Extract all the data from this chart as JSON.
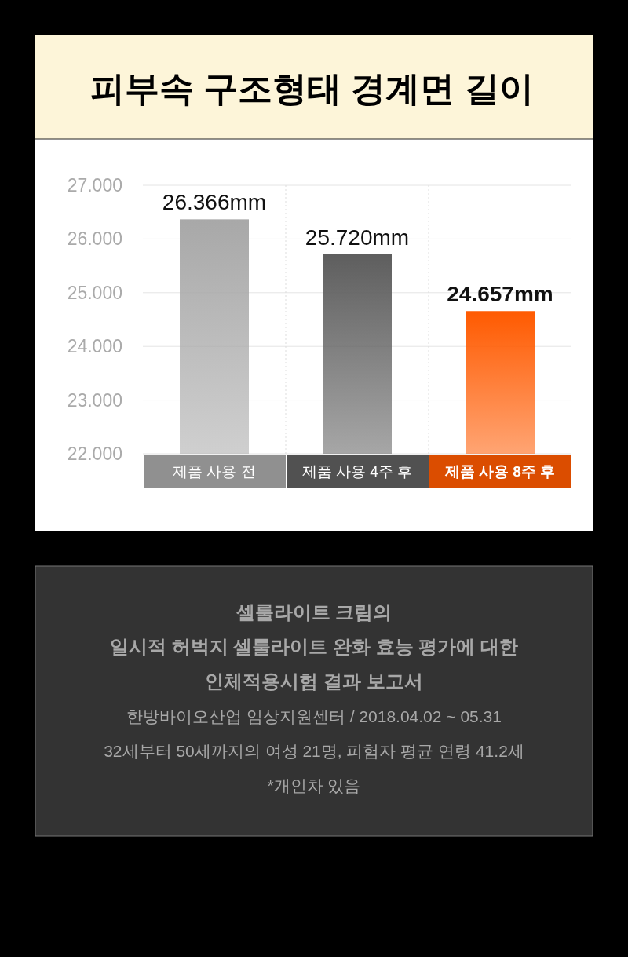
{
  "chart_data": {
    "type": "bar",
    "title": "피부속 구조형태 경계면 길이",
    "categories": [
      "제품 사용 전",
      "제품 사용 4주 후",
      "제품 사용 8주 후"
    ],
    "values": [
      26.366,
      25.72,
      24.657
    ],
    "value_labels": [
      "26.366mm",
      "25.720mm",
      "24.657mm"
    ],
    "colors": [
      "#a8a8a8",
      "#5e5e5e",
      "#ff5a00"
    ],
    "ylim": [
      22,
      27
    ],
    "yticks": [
      {
        "value": 22,
        "label": "22.000"
      },
      {
        "value": 23,
        "label": "23.000"
      },
      {
        "value": 24,
        "label": "24.000"
      },
      {
        "value": 25,
        "label": "25.000"
      },
      {
        "value": 26,
        "label": "26.000"
      },
      {
        "value": 27,
        "label": "27.000"
      }
    ],
    "grid": true,
    "annotations": [
      "셀룰라이트 크림의",
      "일시적 허벅지 셀룰라이트 완화 효능 평가에 대한",
      "인체적용시험 결과 보고서",
      "한방바이오산업 임상지원센터 / 2018.04.02 ~ 05.31",
      "32세부터 50세까지의 여성 21명, 피험자 평균 연령 41.2세",
      "*개인차 있음"
    ]
  }
}
